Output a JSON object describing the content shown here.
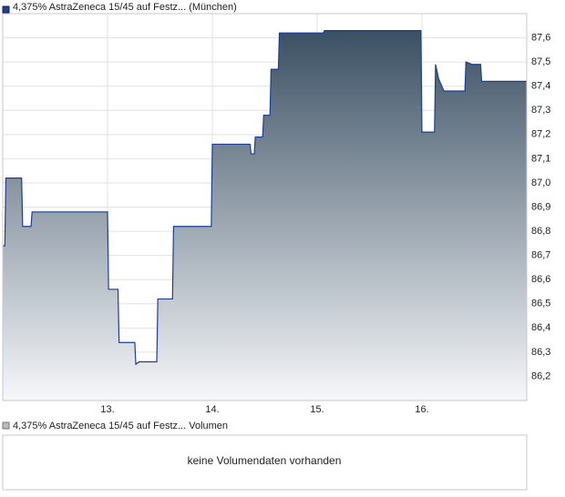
{
  "chart_data": {
    "type": "area",
    "legend": "4,375% AstraZeneca 15/45 auf Festz... (München)",
    "color": "#1c3f94",
    "x": [
      12.0,
      12.02,
      12.03,
      12.18,
      12.19,
      12.27,
      12.28,
      13.0,
      13.01,
      13.1,
      13.11,
      13.26,
      13.27,
      13.3,
      13.47,
      13.48,
      13.62,
      13.63,
      13.99,
      14.0,
      14.36,
      14.37,
      14.4,
      14.41,
      14.48,
      14.49,
      14.55,
      14.56,
      14.63,
      14.64,
      15.06,
      15.07,
      15.99,
      16.0,
      16.12,
      16.13,
      16.16,
      16.21,
      16.41,
      16.42,
      16.48,
      16.56,
      16.57,
      17.0
    ],
    "values": [
      86.74,
      86.74,
      87.02,
      87.02,
      86.82,
      86.82,
      86.88,
      86.88,
      86.56,
      86.56,
      86.34,
      86.34,
      86.25,
      86.26,
      86.26,
      86.52,
      86.52,
      86.82,
      86.82,
      87.16,
      87.16,
      87.12,
      87.12,
      87.19,
      87.19,
      87.28,
      87.28,
      87.47,
      87.47,
      87.62,
      87.62,
      87.63,
      87.63,
      87.21,
      87.21,
      87.49,
      87.43,
      87.38,
      87.38,
      87.5,
      87.49,
      87.49,
      87.42,
      87.42
    ],
    "xlim": [
      12,
      17
    ],
    "xticks": [
      {
        "value": 13,
        "label": "13."
      },
      {
        "value": 14,
        "label": "14."
      },
      {
        "value": 15,
        "label": "15."
      },
      {
        "value": 16,
        "label": "16."
      }
    ],
    "ylim": [
      86.1,
      87.7
    ],
    "yticks": [
      {
        "value": 86.2,
        "label": "86,2"
      },
      {
        "value": 86.3,
        "label": "86,3"
      },
      {
        "value": 86.4,
        "label": "86,4"
      },
      {
        "value": 86.5,
        "label": "86,5"
      },
      {
        "value": 86.6,
        "label": "86,6"
      },
      {
        "value": 86.7,
        "label": "86,7"
      },
      {
        "value": 86.8,
        "label": "86,8"
      },
      {
        "value": 86.9,
        "label": "86,9"
      },
      {
        "value": 87.0,
        "label": "87,0"
      },
      {
        "value": 87.1,
        "label": "87,1"
      },
      {
        "value": 87.2,
        "label": "87,2"
      },
      {
        "value": 87.3,
        "label": "87,3"
      },
      {
        "value": 87.4,
        "label": "87,4"
      },
      {
        "value": 87.5,
        "label": "87,5"
      },
      {
        "value": 87.6,
        "label": "87,6"
      }
    ],
    "grid": true
  },
  "volume_panel": {
    "legend": "4,375% AstraZeneca 15/45 auf Festz... Volumen",
    "message": "keine Volumendaten vorhanden"
  }
}
